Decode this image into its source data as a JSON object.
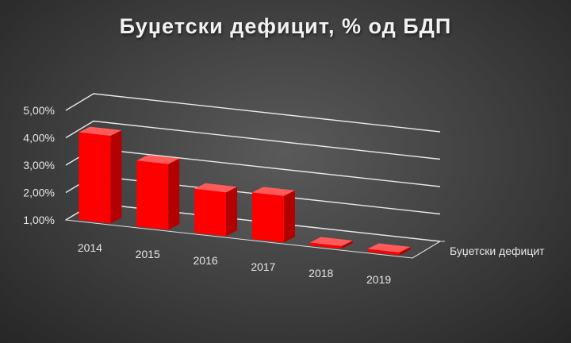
{
  "chart_data": {
    "type": "bar",
    "title": "Буџетски дефицит, % од БДП",
    "categories": [
      "2014",
      "2015",
      "2016",
      "2017",
      "2018",
      "2019"
    ],
    "series": [
      {
        "name": "Буџетски дефицит",
        "values": [
          4.2,
          3.4,
          2.6,
          2.7,
          1.1,
          1.1
        ]
      }
    ],
    "yticks": [
      "1,00%",
      "2,00%",
      "3,00%",
      "4,00%",
      "5,00%"
    ],
    "ylim": [
      1,
      5
    ],
    "xlabel": "",
    "ylabel": "",
    "grid": true,
    "legend": "right",
    "style": "3d-column",
    "colors": {
      "bar_front": "#ff0000",
      "bar_side": "#b30000",
      "bar_top": "#ff5a5a",
      "gridline": "#e8e8e8",
      "text": "#e6e6e6"
    }
  }
}
